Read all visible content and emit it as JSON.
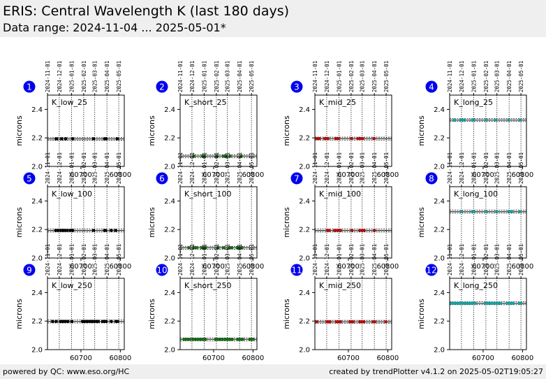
{
  "header": {
    "title": "ERIS: Central Wavelength K (last 180 days)",
    "subtitle": "Data range: 2024-11-04 ... 2025-05-01*"
  },
  "footer": {
    "left": "powered by QC: www.eso.org/HC",
    "right": "created by trendPlotter v4.1.2 on 2025-05-02T19:05:27"
  },
  "colors": {
    "low": "#000000",
    "short": "#1a6a1a",
    "mid": "#b01010",
    "long": "#1aa0a0",
    "badge": "#0000ee"
  },
  "chart_data": {
    "type": "scatter",
    "ylabel": "microns",
    "ylim": [
      2.0,
      2.5
    ],
    "yticks": [
      "2.0",
      "2.2",
      "2.4"
    ],
    "xlim": [
      60615,
      60810
    ],
    "xticks": [
      60700,
      60800
    ],
    "date_ticks": [
      {
        "label": "2024-11-01",
        "mjd": 60615
      },
      {
        "label": "2024-12-01",
        "mjd": 60645
      },
      {
        "label": "2025-01-01",
        "mjd": 60676
      },
      {
        "label": "2025-02-01",
        "mjd": 60707
      },
      {
        "label": "2025-03-01",
        "mjd": 60735
      },
      {
        "label": "2025-04-01",
        "mjd": 60766
      },
      {
        "label": "2025-05-01",
        "mjd": 60796
      }
    ],
    "panels": [
      {
        "id": "1",
        "label": "K_low_25",
        "color_key": "low",
        "ref": 2.193,
        "band": 0.02,
        "y": 2.194,
        "x": [
          60637,
          60638,
          60651,
          60661,
          60679,
          60732,
          60760,
          60762,
          60764,
          60792
        ]
      },
      {
        "id": "2",
        "label": "K_short_25",
        "color_key": "short",
        "ref": 2.072,
        "band": 0.02,
        "y": 2.072,
        "x": [
          60650,
          60672,
          60674,
          60676,
          60708,
          60725,
          60728,
          60732,
          60742,
          60770
        ]
      },
      {
        "id": "3",
        "label": "K_mid_25",
        "color_key": "mid",
        "ref": 2.195,
        "band": 0.02,
        "y": 2.195,
        "x": [
          60620,
          60623,
          60626,
          60640,
          60645,
          60648,
          60668,
          60671,
          60675,
          60708,
          60724,
          60731,
          60733,
          60736,
          60765
        ]
      },
      {
        "id": "4",
        "label": "K_long_25",
        "color_key": "long",
        "ref": 2.325,
        "band": 0.02,
        "y": 2.325,
        "x": [
          60627,
          60643,
          60648,
          60652,
          60673,
          60676,
          60708,
          60732,
          60765,
          60794
        ]
      },
      {
        "id": "5",
        "label": "K_low_100",
        "color_key": "low",
        "ref": 2.193,
        "band": 0.02,
        "y": 2.194,
        "x": [
          60636,
          60641,
          60649,
          60654,
          60657,
          60664,
          60672,
          60677,
          60679,
          60732,
          60760,
          60762,
          60777,
          60788
        ]
      },
      {
        "id": "6",
        "label": "K_short_100",
        "color_key": "short",
        "ref": 2.072,
        "band": 0.02,
        "y": 2.072,
        "x": [
          60637,
          60650,
          60657,
          60670,
          60673,
          60676,
          60679,
          60711,
          60725,
          60740,
          60743,
          60746,
          60760,
          60764,
          60768,
          60772
        ]
      },
      {
        "id": "7",
        "label": "K_mid_100",
        "color_key": "mid",
        "ref": 2.193,
        "band": 0.02,
        "y": 2.194,
        "x": [
          60647,
          60651,
          60665,
          60671,
          60676,
          60680,
          60709,
          60729,
          60735,
          60738,
          60740,
          60766
        ]
      },
      {
        "id": "8",
        "label": "K_long_100",
        "color_key": "long",
        "ref": 2.325,
        "band": 0.02,
        "y": 2.326,
        "x": [
          60645,
          60673,
          60676,
          60708,
          60734,
          60765,
          60770,
          60773,
          60793
        ]
      },
      {
        "id": "9",
        "label": "K_low_250",
        "color_key": "low",
        "ref": 2.197,
        "band": 0.02,
        "y": 2.198,
        "x": [
          60628,
          60637,
          60648,
          60652,
          60655,
          60660,
          60667,
          60677,
          60704,
          60708,
          60711,
          60715,
          60719,
          60724,
          60727,
          60730,
          60733,
          60737,
          60741,
          60744,
          60755,
          60760,
          60764,
          60777,
          60789,
          60793
        ]
      },
      {
        "id": "10",
        "label": "K_short_250",
        "color_key": "short",
        "ref": 2.072,
        "band": 0.02,
        "y": 2.072,
        "x": [
          60625,
          60628,
          60632,
          60636,
          60639,
          60647,
          60651,
          60655,
          60658,
          60662,
          60666,
          60670,
          60673,
          60676,
          60679,
          60705,
          60708,
          60711,
          60715,
          60719,
          60722,
          60729,
          60733,
          60736,
          60740,
          60743,
          60747,
          60761,
          60764,
          60767,
          60771,
          60774,
          60792,
          60796,
          60800
        ]
      },
      {
        "id": "11",
        "label": "K_mid_250",
        "color_key": "mid",
        "ref": 2.195,
        "band": 0.02,
        "y": 2.195,
        "x": [
          60620,
          60646,
          60649,
          60653,
          60670,
          60673,
          60676,
          60680,
          60704,
          60708,
          60712,
          60729,
          60733,
          60736,
          60739,
          60763,
          60767,
          60795
        ]
      },
      {
        "id": "12",
        "label": "K_long_250",
        "color_key": "long",
        "ref": 2.325,
        "band": 0.02,
        "y": 2.325,
        "x": [
          60619,
          60623,
          60627,
          60631,
          60635,
          60639,
          60645,
          60649,
          60656,
          60660,
          60664,
          60668,
          60672,
          60676,
          60680,
          60705,
          60709,
          60712,
          60716,
          60720,
          60728,
          60732,
          60736,
          60740,
          60744,
          60761,
          60765,
          60768,
          60772,
          60776,
          60792,
          60796
        ]
      }
    ]
  }
}
